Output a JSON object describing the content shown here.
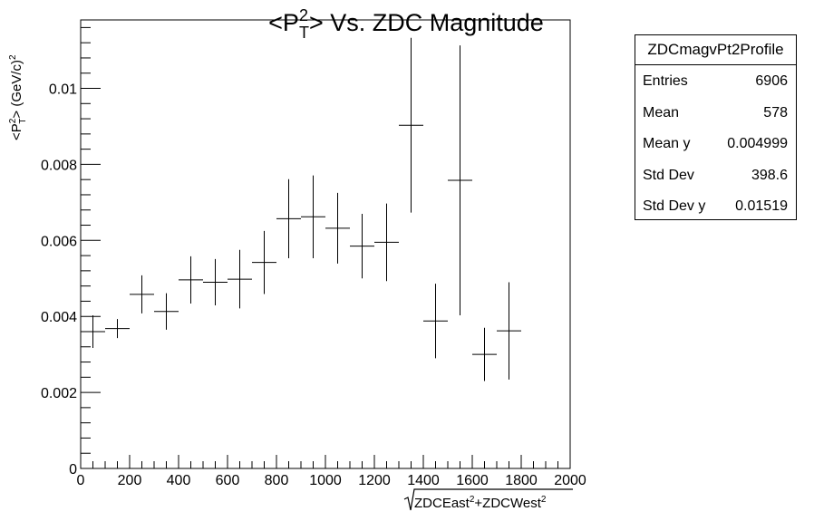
{
  "chart_data": {
    "type": "scatter",
    "style": "profile-histogram with error bars",
    "title": "<P_T^2> Vs. ZDC Magnitude",
    "title_parts": {
      "pre": "<P",
      "sup": "2",
      "sub": "T",
      "post": "> Vs. ZDC Magnitude"
    },
    "xlabel": "√ZDCEast²+ZDCWest²",
    "xlabel_parts": {
      "a": "ZDCEast",
      "sup1": "2",
      "b": "+ZDCWest",
      "sup2": "2"
    },
    "ylabel": "<P_T^2> (GeV/c)^2",
    "ylabel_parts": {
      "pre": "<P",
      "sup": "2",
      "sub": "T",
      "post": "> (GeV/c)",
      "sup2": "2"
    },
    "xlim": [
      0,
      2000
    ],
    "ylim": [
      0,
      0.0118
    ],
    "x_ticks": [
      "0",
      "200",
      "400",
      "600",
      "800",
      "1000",
      "1200",
      "1400",
      "1600",
      "1800",
      "2000"
    ],
    "x_tick_values": [
      0,
      200,
      400,
      600,
      800,
      1000,
      1200,
      1400,
      1600,
      1800,
      2000
    ],
    "y_ticks": [
      "0",
      "0.002",
      "0.004",
      "0.006",
      "0.008",
      "0.01"
    ],
    "y_tick_values": [
      0,
      0.002,
      0.004,
      0.006,
      0.008,
      0.01
    ],
    "grid": false,
    "points": [
      {
        "x": 50,
        "x_err": 50,
        "y": 0.0036,
        "y_err": 0.00043
      },
      {
        "x": 150,
        "x_err": 50,
        "y": 0.00368,
        "y_err": 0.00025
      },
      {
        "x": 250,
        "x_err": 50,
        "y": 0.00458,
        "y_err": 0.0005
      },
      {
        "x": 350,
        "x_err": 50,
        "y": 0.00413,
        "y_err": 0.00048
      },
      {
        "x": 450,
        "x_err": 50,
        "y": 0.00496,
        "y_err": 0.00062
      },
      {
        "x": 550,
        "x_err": 50,
        "y": 0.0049,
        "y_err": 0.00061
      },
      {
        "x": 650,
        "x_err": 50,
        "y": 0.00498,
        "y_err": 0.00077
      },
      {
        "x": 750,
        "x_err": 50,
        "y": 0.00542,
        "y_err": 0.00083
      },
      {
        "x": 850,
        "x_err": 50,
        "y": 0.00657,
        "y_err": 0.00104
      },
      {
        "x": 950,
        "x_err": 50,
        "y": 0.00662,
        "y_err": 0.00109
      },
      {
        "x": 1050,
        "x_err": 50,
        "y": 0.00632,
        "y_err": 0.00093
      },
      {
        "x": 1150,
        "x_err": 50,
        "y": 0.00585,
        "y_err": 0.00085
      },
      {
        "x": 1250,
        "x_err": 50,
        "y": 0.00595,
        "y_err": 0.00102
      },
      {
        "x": 1350,
        "x_err": 50,
        "y": 0.00903,
        "y_err": 0.0023
      },
      {
        "x": 1450,
        "x_err": 50,
        "y": 0.00388,
        "y_err": 0.00098
      },
      {
        "x": 1550,
        "x_err": 50,
        "y": 0.00758,
        "y_err": 0.00355
      },
      {
        "x": 1650,
        "x_err": 50,
        "y": 0.003,
        "y_err": 0.0007
      },
      {
        "x": 1750,
        "x_err": 50,
        "y": 0.00362,
        "y_err": 0.00128
      }
    ]
  },
  "stats_box": {
    "title": "ZDCmagvPt2Profile",
    "rows": [
      {
        "label": "Entries",
        "value": "6906"
      },
      {
        "label": "Mean",
        "value": "578"
      },
      {
        "label": "Mean y",
        "value": "0.004999"
      },
      {
        "label": "Std Dev",
        "value": "398.6"
      },
      {
        "label": "Std Dev y",
        "value": "0.01519"
      }
    ]
  }
}
